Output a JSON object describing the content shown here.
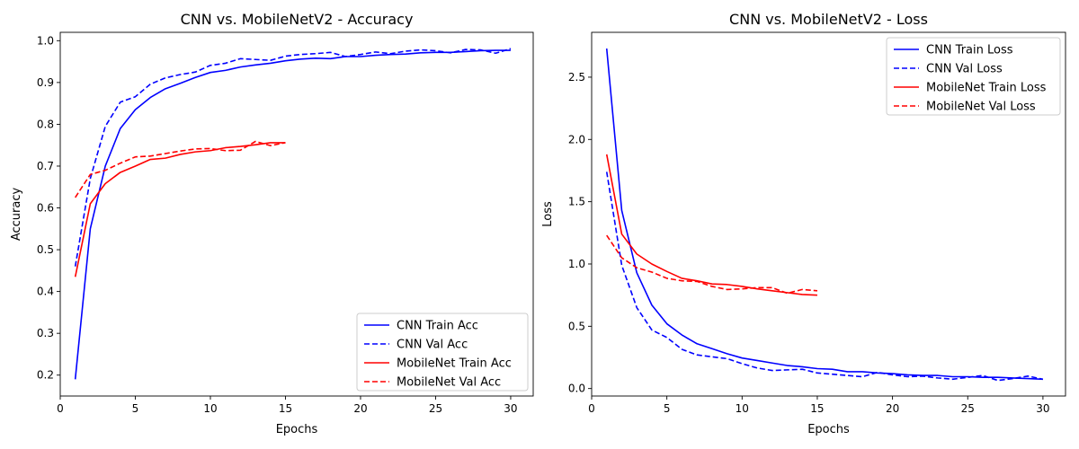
{
  "chart_data": [
    {
      "type": "line",
      "title": "CNN vs. MobileNetV2 - Accuracy",
      "xlabel": "Epochs",
      "ylabel": "Accuracy",
      "xlim": [
        0,
        31.5
      ],
      "ylim": [
        0.15,
        1.02
      ],
      "xticks": [
        0,
        5,
        10,
        15,
        20,
        25,
        30
      ],
      "yticks": [
        0.2,
        0.3,
        0.4,
        0.5,
        0.6,
        0.7,
        0.8,
        0.9,
        1.0
      ],
      "legend_position": "bottom-right",
      "series": [
        {
          "name": "CNN Train Acc",
          "color": "#0000ff",
          "dash": "solid",
          "x": [
            1,
            2,
            3,
            4,
            5,
            6,
            7,
            8,
            9,
            10,
            11,
            12,
            13,
            14,
            15,
            16,
            17,
            18,
            19,
            20,
            21,
            22,
            23,
            24,
            25,
            26,
            27,
            28,
            29,
            30
          ],
          "y": [
            0.19,
            0.55,
            0.7,
            0.79,
            0.835,
            0.864,
            0.885,
            0.898,
            0.912,
            0.924,
            0.929,
            0.937,
            0.942,
            0.946,
            0.952,
            0.956,
            0.958,
            0.957,
            0.962,
            0.962,
            0.965,
            0.967,
            0.968,
            0.971,
            0.972,
            0.972,
            0.974,
            0.976,
            0.977,
            0.977
          ]
        },
        {
          "name": "CNN Val Acc",
          "color": "#0000ff",
          "dash": "dashed",
          "x": [
            1,
            2,
            3,
            4,
            5,
            6,
            7,
            8,
            9,
            10,
            11,
            12,
            13,
            14,
            15,
            16,
            17,
            18,
            19,
            20,
            21,
            22,
            23,
            24,
            25,
            26,
            27,
            28,
            29,
            30
          ],
          "y": [
            0.46,
            0.67,
            0.795,
            0.853,
            0.866,
            0.896,
            0.911,
            0.919,
            0.925,
            0.941,
            0.946,
            0.957,
            0.955,
            0.953,
            0.963,
            0.967,
            0.969,
            0.972,
            0.962,
            0.967,
            0.973,
            0.969,
            0.975,
            0.978,
            0.976,
            0.971,
            0.979,
            0.978,
            0.97,
            0.981
          ]
        },
        {
          "name": "MobileNet Train Acc",
          "color": "#ff0000",
          "dash": "solid",
          "x": [
            1,
            2,
            3,
            4,
            5,
            6,
            7,
            8,
            9,
            10,
            11,
            12,
            13,
            14,
            15
          ],
          "y": [
            0.435,
            0.61,
            0.658,
            0.685,
            0.7,
            0.716,
            0.719,
            0.728,
            0.734,
            0.737,
            0.744,
            0.747,
            0.751,
            0.756,
            0.756
          ]
        },
        {
          "name": "MobileNet Val Acc",
          "color": "#ff0000",
          "dash": "dashed",
          "x": [
            1,
            2,
            3,
            4,
            5,
            6,
            7,
            8,
            9,
            10,
            11,
            12,
            13,
            14,
            15
          ],
          "y": [
            0.625,
            0.68,
            0.69,
            0.707,
            0.722,
            0.724,
            0.73,
            0.736,
            0.741,
            0.742,
            0.737,
            0.738,
            0.759,
            0.749,
            0.756
          ]
        }
      ]
    },
    {
      "type": "line",
      "title": "CNN vs. MobileNetV2 - Loss",
      "xlabel": "Epochs",
      "ylabel": "Loss",
      "xlim": [
        0,
        31.5
      ],
      "ylim": [
        -0.06,
        2.86
      ],
      "xticks": [
        0,
        5,
        10,
        15,
        20,
        25,
        30
      ],
      "yticks": [
        0.0,
        0.5,
        1.0,
        1.5,
        2.0,
        2.5
      ],
      "legend_position": "top-right",
      "series": [
        {
          "name": "CNN Train Loss",
          "color": "#0000ff",
          "dash": "solid",
          "x": [
            1,
            2,
            3,
            4,
            5,
            6,
            7,
            8,
            9,
            10,
            11,
            12,
            13,
            14,
            15,
            16,
            17,
            18,
            19,
            20,
            21,
            22,
            23,
            24,
            25,
            26,
            27,
            28,
            29,
            30
          ],
          "y": [
            2.73,
            1.43,
            0.93,
            0.67,
            0.52,
            0.43,
            0.36,
            0.32,
            0.28,
            0.245,
            0.225,
            0.205,
            0.185,
            0.175,
            0.16,
            0.155,
            0.135,
            0.135,
            0.125,
            0.12,
            0.11,
            0.105,
            0.105,
            0.095,
            0.095,
            0.09,
            0.09,
            0.085,
            0.08,
            0.075
          ]
        },
        {
          "name": "CNN Val Loss",
          "color": "#0000ff",
          "dash": "dashed",
          "x": [
            1,
            2,
            3,
            4,
            5,
            6,
            7,
            8,
            9,
            10,
            11,
            12,
            13,
            14,
            15,
            16,
            17,
            18,
            19,
            20,
            21,
            22,
            23,
            24,
            25,
            26,
            27,
            28,
            29,
            30
          ],
          "y": [
            1.74,
            0.99,
            0.65,
            0.47,
            0.41,
            0.315,
            0.27,
            0.255,
            0.24,
            0.2,
            0.165,
            0.145,
            0.15,
            0.155,
            0.125,
            0.115,
            0.105,
            0.095,
            0.13,
            0.11,
            0.095,
            0.1,
            0.085,
            0.075,
            0.09,
            0.105,
            0.065,
            0.08,
            0.1,
            0.075
          ]
        },
        {
          "name": "MobileNet Train Loss",
          "color": "#ff0000",
          "dash": "solid",
          "x": [
            1,
            2,
            3,
            4,
            5,
            6,
            7,
            8,
            9,
            10,
            11,
            12,
            13,
            14,
            15
          ],
          "y": [
            1.88,
            1.24,
            1.08,
            1.0,
            0.94,
            0.885,
            0.865,
            0.84,
            0.835,
            0.82,
            0.8,
            0.785,
            0.77,
            0.755,
            0.75
          ]
        },
        {
          "name": "MobileNet Val Loss",
          "color": "#ff0000",
          "dash": "dashed",
          "x": [
            1,
            2,
            3,
            4,
            5,
            6,
            7,
            8,
            9,
            10,
            11,
            12,
            13,
            14,
            15
          ],
          "y": [
            1.23,
            1.05,
            0.97,
            0.935,
            0.885,
            0.865,
            0.86,
            0.82,
            0.795,
            0.8,
            0.81,
            0.81,
            0.765,
            0.795,
            0.785
          ]
        }
      ]
    }
  ]
}
